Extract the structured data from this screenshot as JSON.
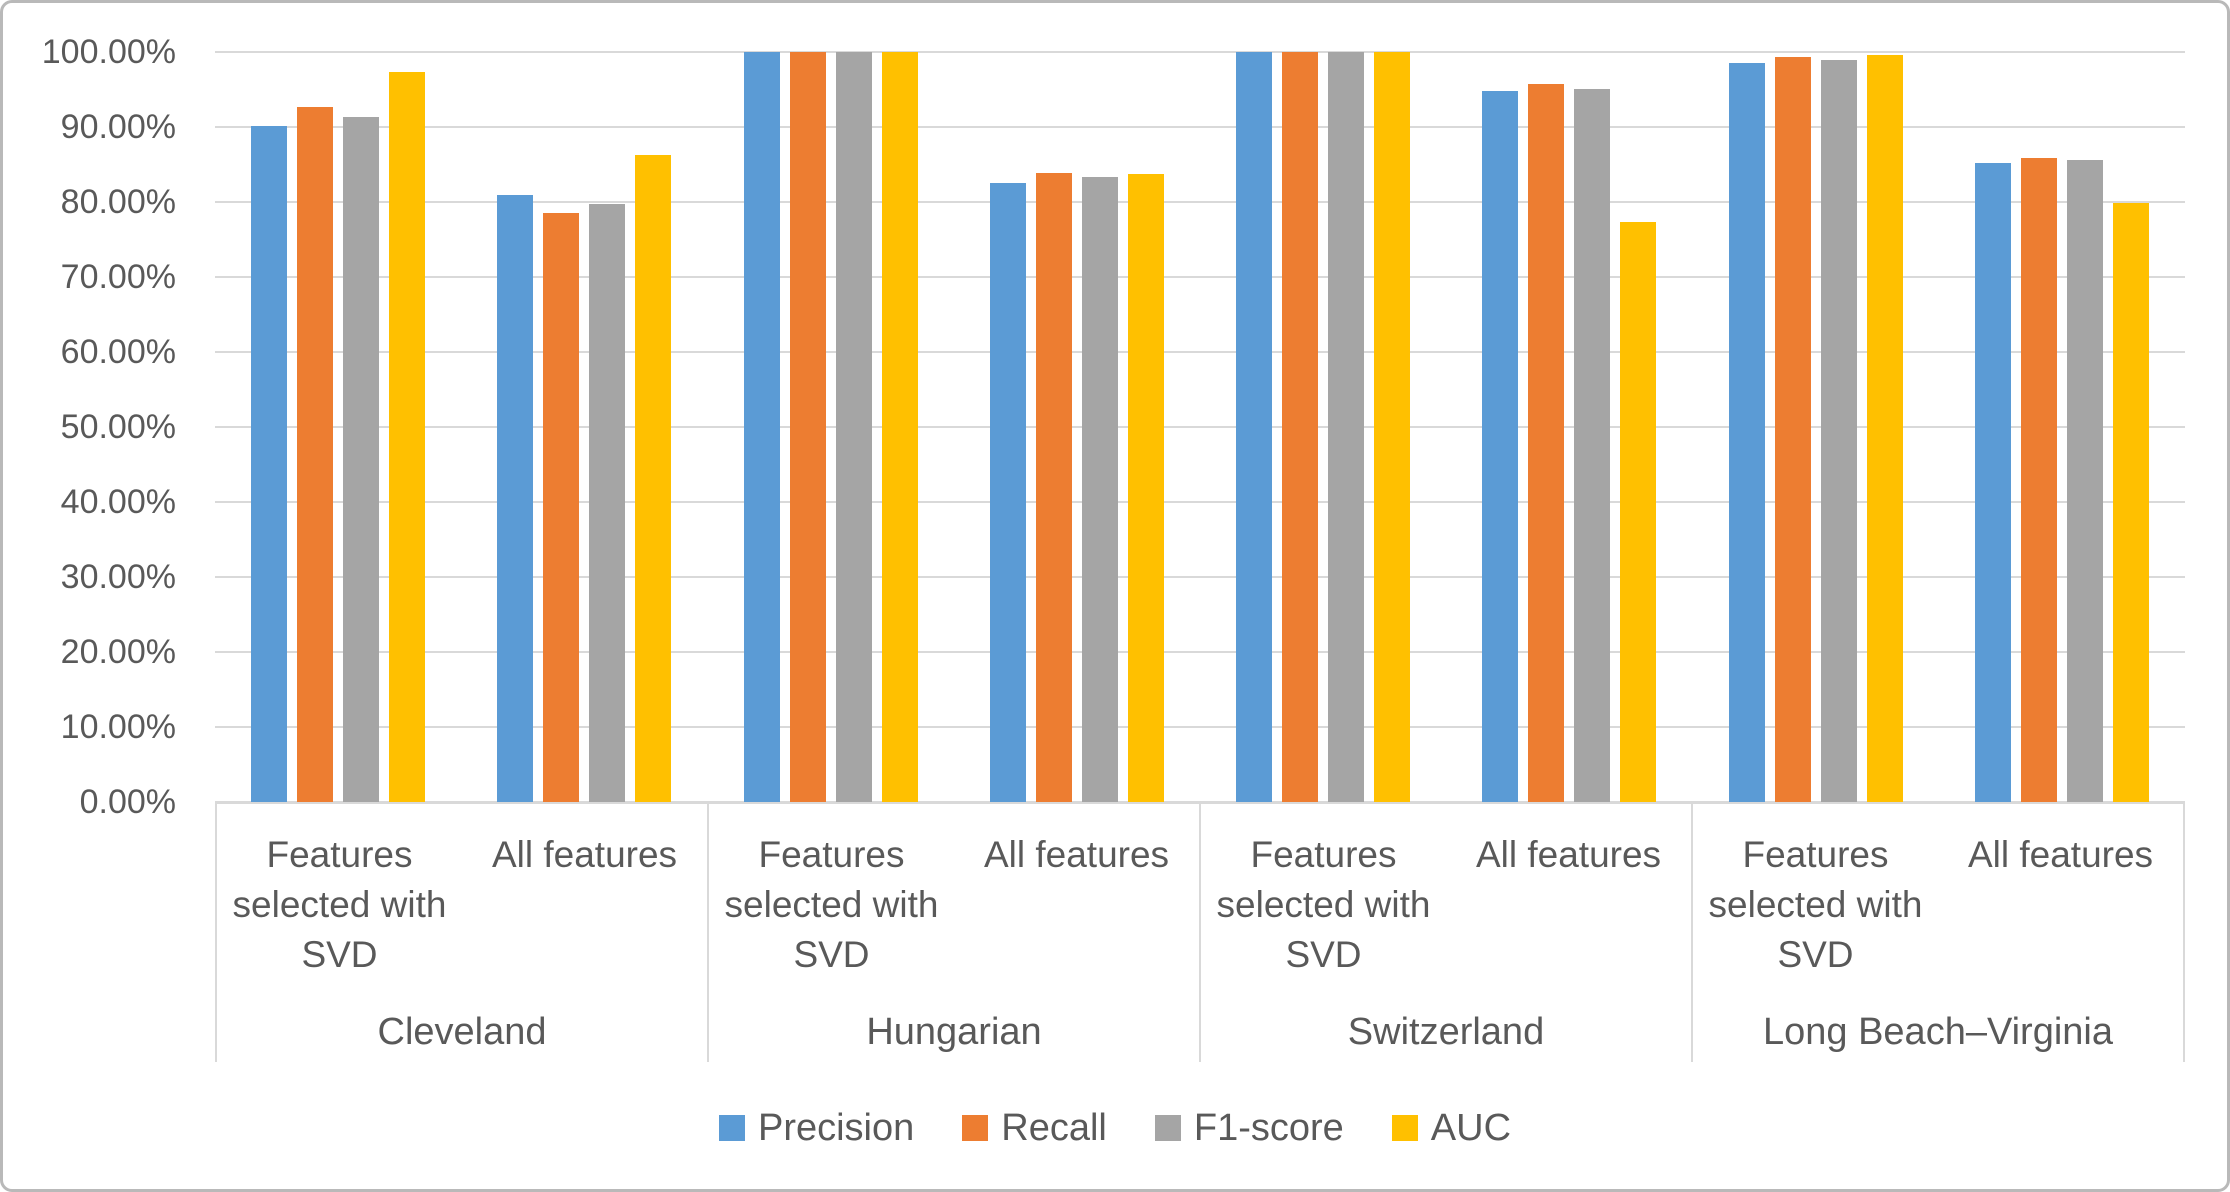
{
  "chart_data": {
    "type": "bar",
    "title": "",
    "xlabel": "",
    "ylabel": "",
    "grid": true,
    "legend_position": "bottom",
    "y_axis": {
      "min": 0,
      "max": 100,
      "ticks": [
        {
          "label": "0.00%",
          "value": 0
        },
        {
          "label": "10.00%",
          "value": 10
        },
        {
          "label": "20.00%",
          "value": 20
        },
        {
          "label": "30.00%",
          "value": 30
        },
        {
          "label": "40.00%",
          "value": 40
        },
        {
          "label": "50.00%",
          "value": 50
        },
        {
          "label": "60.00%",
          "value": 60
        },
        {
          "label": "70.00%",
          "value": 70
        },
        {
          "label": "80.00%",
          "value": 80
        },
        {
          "label": "90.00%",
          "value": 90
        },
        {
          "label": "100.00%",
          "value": 100
        }
      ]
    },
    "series": [
      {
        "name": "Precision",
        "color": "#5B9BD5"
      },
      {
        "name": "Recall",
        "color": "#ED7D31"
      },
      {
        "name": "F1-score",
        "color": "#A5A5A5"
      },
      {
        "name": "AUC",
        "color": "#FFC000"
      }
    ],
    "groups": [
      {
        "label": "Cleveland",
        "clusters": [
          {
            "label": "Features selected with SVD",
            "values": [
              90.1,
              92.7,
              91.4,
              97.4
            ]
          },
          {
            "label": "All features",
            "values": [
              81.0,
              78.6,
              79.8,
              86.3
            ]
          }
        ]
      },
      {
        "label": "Hungarian",
        "clusters": [
          {
            "label": "Features selected with SVD",
            "values": [
              100,
              100,
              100,
              100
            ]
          },
          {
            "label": "All features",
            "values": [
              82.6,
              83.9,
              83.4,
              83.8
            ]
          }
        ]
      },
      {
        "label": "Switzerland",
        "clusters": [
          {
            "label": "Features selected with SVD",
            "values": [
              100,
              100,
              100,
              100
            ]
          },
          {
            "label": "All features",
            "values": [
              94.8,
              95.7,
              95.1,
              77.4
            ]
          }
        ]
      },
      {
        "label": "Long Beach–Virginia",
        "clusters": [
          {
            "label": "Features selected with SVD",
            "values": [
              98.5,
              99.3,
              98.9,
              99.6
            ]
          },
          {
            "label": "All features",
            "values": [
              85.2,
              85.9,
              85.6,
              79.9
            ]
          }
        ]
      }
    ],
    "colors": {
      "text": "#595959",
      "gridline": "#D9D9D9",
      "frame_border": "#B9B9B9",
      "background": "#FFFFFF"
    }
  }
}
